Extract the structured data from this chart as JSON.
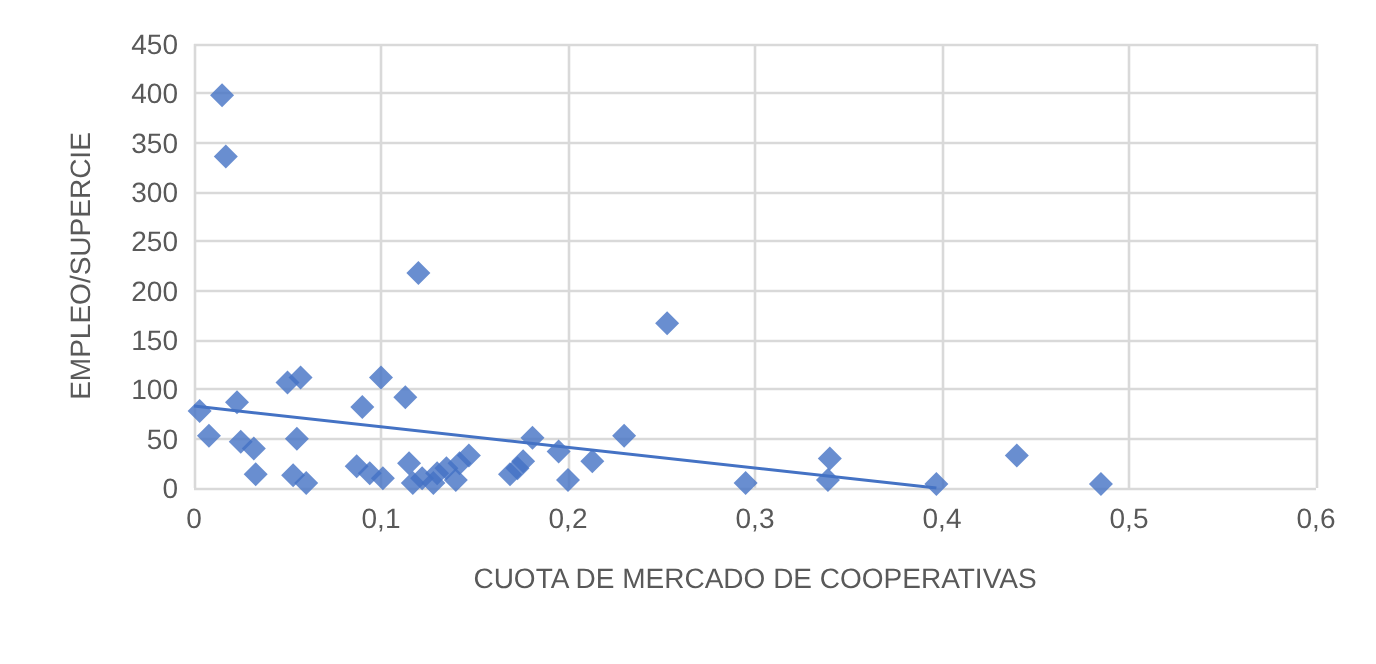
{
  "chart_data": {
    "type": "scatter",
    "xlabel": "CUOTA DE MERCADO DE COOPERATIVAS",
    "ylabel": "EMPLEO/SUPERCIE",
    "series": [
      {
        "color": "#4472c4",
        "marker": "diamond",
        "x": [
          0.003,
          0.008,
          0.015,
          0.017,
          0.023,
          0.025,
          0.032,
          0.033,
          0.05,
          0.053,
          0.055,
          0.057,
          0.06,
          0.087,
          0.09,
          0.094,
          0.1,
          0.101,
          0.113,
          0.115,
          0.117,
          0.12,
          0.122,
          0.128,
          0.13,
          0.135,
          0.14,
          0.142,
          0.147,
          0.169,
          0.173,
          0.176,
          0.181,
          0.195,
          0.2,
          0.213,
          0.23,
          0.253,
          0.295,
          0.339,
          0.34,
          0.397,
          0.44,
          0.485
        ],
        "values": [
          78,
          53,
          398,
          336,
          87,
          47,
          40,
          14,
          107,
          13,
          50,
          112,
          5,
          22,
          82,
          15,
          112,
          10,
          92,
          25,
          5,
          218,
          10,
          5,
          15,
          20,
          8,
          25,
          33,
          14,
          20,
          27,
          51,
          37,
          8,
          27,
          53,
          167,
          5,
          8,
          30,
          4,
          33,
          4
        ]
      },
      {
        "type": "line",
        "color": "#4472c4",
        "marker": "none",
        "x": [
          0,
          0.397
        ],
        "values": [
          83,
          0
        ]
      }
    ],
    "xlim": [
      0,
      0.6
    ],
    "xticks": [
      {
        "value": 0,
        "label": "0"
      },
      {
        "value": 0.1,
        "label": "0,1"
      },
      {
        "value": 0.2,
        "label": "0,2"
      },
      {
        "value": 0.3,
        "label": "0,3"
      },
      {
        "value": 0.4,
        "label": "0,4"
      },
      {
        "value": 0.5,
        "label": "0,5"
      },
      {
        "value": 0.6,
        "label": "0,6"
      }
    ],
    "ylim": [
      0,
      450
    ],
    "yticks": [
      0,
      50,
      100,
      150,
      200,
      250,
      300,
      350,
      400,
      450
    ],
    "grid": true
  }
}
